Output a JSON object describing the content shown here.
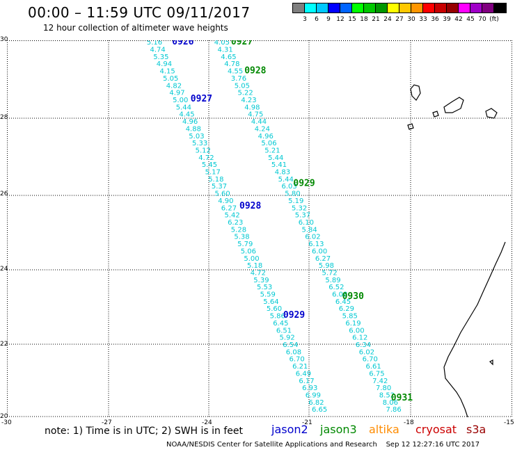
{
  "header": {
    "title": "00:00 – 11:59 UTC 09/11/2017",
    "subtitle": "12 hour collection of altimeter wave heights"
  },
  "colorbar": {
    "colors": [
      "#7f7f7f",
      "#00ffff",
      "#00c8ff",
      "#0000ff",
      "#0064ff",
      "#00ff00",
      "#00c800",
      "#009600",
      "#ffff00",
      "#ffc800",
      "#ff9600",
      "#ff0000",
      "#c80000",
      "#960000",
      "#ff00ff",
      "#a000c8",
      "#800080",
      "#000000"
    ],
    "labels": [
      "3",
      "6",
      "9",
      "12",
      "15",
      "18",
      "21",
      "24",
      "27",
      "30",
      "33",
      "36",
      "39",
      "42",
      "45",
      "70",
      "(ft)"
    ]
  },
  "axes": {
    "lat_labels": [
      "30",
      "28",
      "26",
      "24",
      "22",
      "20"
    ],
    "lon_labels": [
      "-30",
      "-27",
      "-24",
      "-21",
      "-18",
      "-15"
    ],
    "lat_range": [
      20,
      30
    ],
    "lon_range": [
      -30,
      -15
    ]
  },
  "tracks": [
    {
      "values": [
        "5.16",
        "4.74",
        "5.35",
        "4.94",
        "4.15",
        "5.05",
        "4.82",
        "4.97",
        "5.00",
        "5.44",
        "4.45",
        "4.96",
        "4.88",
        "5.03",
        "5.33",
        "5.12",
        "4.72",
        "5.45",
        "5.17",
        "5.18",
        "5.37",
        "5.60",
        "4.90",
        "6.27",
        "5.42",
        "6.23",
        "5.28",
        "5.38",
        "5.79",
        "5.06",
        "5.00",
        "5.18",
        "4.72",
        "5.39",
        "5.53",
        "5.59",
        "5.64",
        "5.60",
        "5.86",
        "6.45",
        "6.51",
        "5.92",
        "6.54",
        "6.08",
        "6.70",
        "6.21",
        "6.49",
        "6.17",
        "6.93",
        "6.99",
        "6.82",
        "6.65"
      ],
      "start_lon": -25.85,
      "end_lon": -20.95,
      "date_labels": [
        {
          "text": "0926",
          "lat": 29.96,
          "lon": -25.1,
          "color": "#0000cc"
        },
        {
          "text": "0927",
          "lat": 28.45,
          "lon": -24.55,
          "color": "#0000cc"
        },
        {
          "text": "0928",
          "lat": 25.6,
          "lon": -23.1,
          "color": "#0000cc"
        },
        {
          "text": "0929",
          "lat": 22.7,
          "lon": -21.8,
          "color": "#0000cc"
        }
      ]
    },
    {
      "values": [
        "4.05",
        "4.31",
        "4.65",
        "4.78",
        "4.55",
        "3.76",
        "5.05",
        "5.22",
        "4.23",
        "4.98",
        "4.75",
        "4.44",
        "4.24",
        "4.96",
        "5.06",
        "5.21",
        "5.44",
        "5.41",
        "4.83",
        "5.44",
        "6.03",
        "5.80",
        "5.19",
        "5.32",
        "5.37",
        "6.10",
        "5.84",
        "6.02",
        "6.13",
        "6.00",
        "6.27",
        "5.98",
        "5.72",
        "5.89",
        "6.52",
        "6.08",
        "6.45",
        "6.29",
        "5.85",
        "6.19",
        "6.00",
        "6.12",
        "6.34",
        "6.02",
        "6.70",
        "6.61",
        "6.75",
        "7.42",
        "7.80",
        "8.52",
        "8.06",
        "7.86"
      ],
      "start_lon": -23.85,
      "end_lon": -18.75,
      "date_labels": [
        {
          "text": "0927",
          "lat": 29.96,
          "lon": -23.35,
          "color": "#008800"
        },
        {
          "text": "0928",
          "lat": 29.2,
          "lon": -22.95,
          "color": "#008800"
        },
        {
          "text": "0929",
          "lat": 26.2,
          "lon": -21.5,
          "color": "#008800"
        },
        {
          "text": "0930",
          "lat": 23.2,
          "lon": -20.05,
          "color": "#008800"
        },
        {
          "text": "0931",
          "lat": 20.5,
          "lon": -18.6,
          "color": "#008800"
        }
      ]
    }
  ],
  "legend": {
    "note": "note: 1) Time is in UTC; 2) SWH is in feet",
    "items": [
      {
        "label": "jason2",
        "color": "#0000cc"
      },
      {
        "label": "jason3",
        "color": "#008800"
      },
      {
        "label": "altika",
        "color": "#ff8c00"
      },
      {
        "label": "cryosat",
        "color": "#cc0000"
      },
      {
        "label": "s3a",
        "color": "#990000"
      }
    ]
  },
  "footer": {
    "credit": "NOAA/NESDIS Center for Satellite Applications and Research",
    "timestamp": "Sep 12 12:27:16 UTC 2017"
  }
}
